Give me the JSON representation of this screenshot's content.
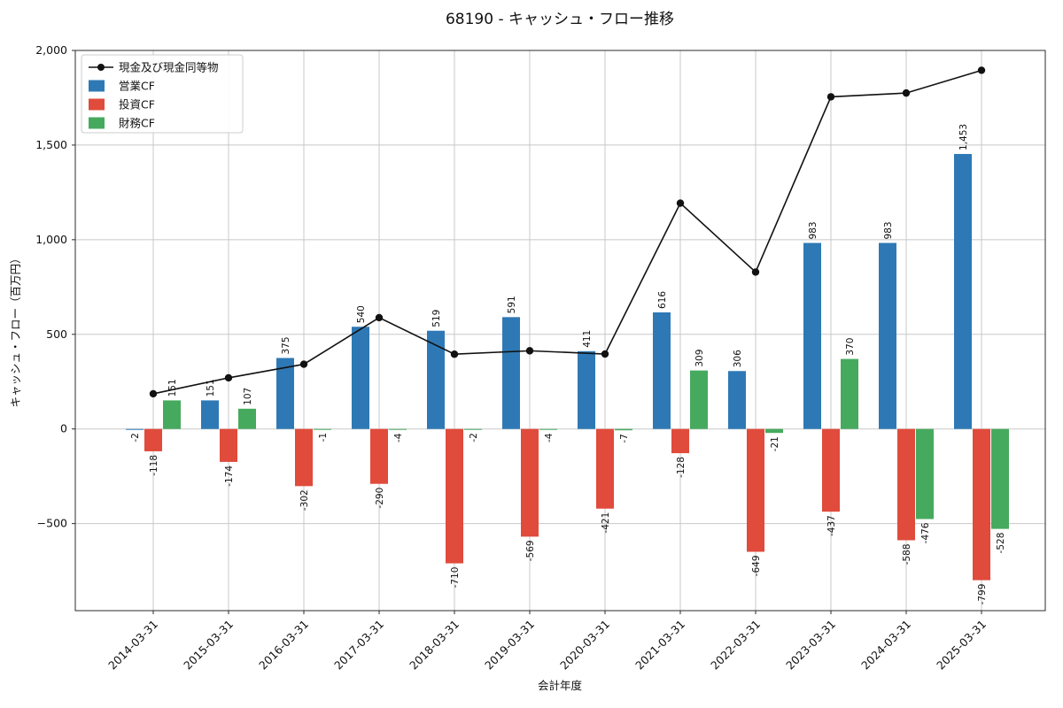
{
  "title": "68190 - キャッシュ・フロー推移",
  "chart_data": {
    "type": "bar",
    "subtype": "grouped-bars-with-line",
    "categories": [
      "2014-03-31",
      "2015-03-31",
      "2016-03-31",
      "2017-03-31",
      "2018-03-31",
      "2019-03-31",
      "2020-03-31",
      "2021-03-31",
      "2022-03-31",
      "2023-03-31",
      "2024-03-31",
      "2025-03-31"
    ],
    "series": [
      {
        "key": "operating-cf",
        "name": "営業CF",
        "type": "bar",
        "color": "#2e79b5",
        "values": [
          -2,
          151,
          375,
          540,
          519,
          591,
          411,
          616,
          306,
          983,
          983,
          1453
        ]
      },
      {
        "key": "investing-cf",
        "name": "投資CF",
        "type": "bar",
        "color": "#e04b3c",
        "values": [
          -118,
          -174,
          -302,
          -290,
          -710,
          -569,
          -421,
          -128,
          -649,
          -437,
          -588,
          -799
        ]
      },
      {
        "key": "financing-cf",
        "name": "財務CF",
        "type": "bar",
        "color": "#46aa5e",
        "values": [
          151,
          107,
          -1,
          -4,
          -2,
          -4,
          -7,
          309,
          -21,
          370,
          -476,
          -528
        ]
      },
      {
        "key": "cash-equivalents",
        "name": "現金及び現金同等物",
        "type": "line",
        "color": "#111111",
        "values": [
          186,
          270,
          342,
          588,
          395,
          413,
          396,
          1193,
          829,
          1755,
          1775,
          1895
        ]
      }
    ],
    "xlabel": "会計年度",
    "ylabel": "キャッシュ・フロー（百万円）",
    "ylim": [
      -960,
      2000
    ],
    "yticks": [
      -500,
      0,
      500,
      1000,
      1500,
      2000
    ],
    "grid": true,
    "legend_position": "upper-left",
    "grid_color": "#c8c8c8",
    "axis_color": "#2b2b2b",
    "legend_border_color": "#cccccc"
  }
}
